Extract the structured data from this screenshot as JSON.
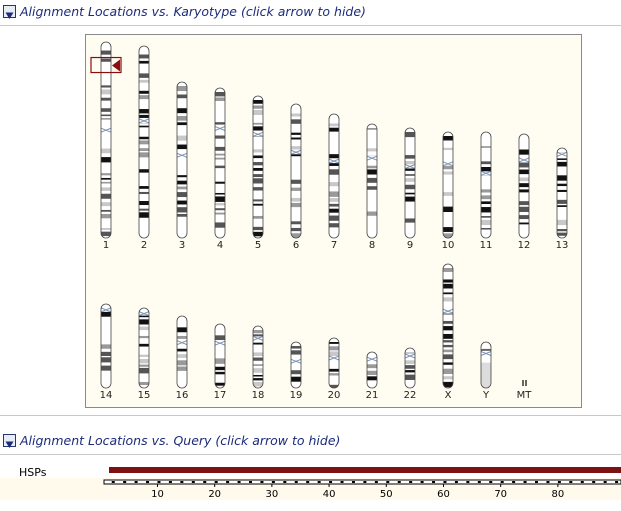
{
  "karyotype_section": {
    "title": "Alignment Locations vs. Karyotype (click arrow to hide)",
    "toggle_icon": "triangle-down-icon",
    "chromosomes": [
      {
        "label": "1",
        "height": 196,
        "centromere": 0.45
      },
      {
        "label": "2",
        "height": 192,
        "centromere": 0.39
      },
      {
        "label": "3",
        "height": 156,
        "centromere": 0.47
      },
      {
        "label": "4",
        "height": 150,
        "centromere": 0.27
      },
      {
        "label": "5",
        "height": 142,
        "centromere": 0.27
      },
      {
        "label": "6",
        "height": 134,
        "centromere": 0.36
      },
      {
        "label": "7",
        "height": 124,
        "centromere": 0.38
      },
      {
        "label": "8",
        "height": 114,
        "centromere": 0.3
      },
      {
        "label": "9",
        "height": 110,
        "centromere": 0.35
      },
      {
        "label": "10",
        "height": 106,
        "centromere": 0.3
      },
      {
        "label": "11",
        "height": 106,
        "centromere": 0.39
      },
      {
        "label": "12",
        "height": 104,
        "centromere": 0.25
      },
      {
        "label": "13",
        "height": 90,
        "centromere": 0.07
      },
      {
        "label": "14",
        "height": 84,
        "centromere": 0.07
      },
      {
        "label": "15",
        "height": 80,
        "centromere": 0.07
      },
      {
        "label": "16",
        "height": 72,
        "centromere": 0.37
      },
      {
        "label": "17",
        "height": 64,
        "centromere": 0.3
      },
      {
        "label": "18",
        "height": 62,
        "centromere": 0.2
      },
      {
        "label": "19",
        "height": 46,
        "centromere": 0.42
      },
      {
        "label": "20",
        "height": 50,
        "centromere": 0.4
      },
      {
        "label": "21",
        "height": 36,
        "centromere": 0.2
      },
      {
        "label": "22",
        "height": 40,
        "centromere": 0.2
      },
      {
        "label": "X",
        "height": 124,
        "centromere": 0.38
      },
      {
        "label": "Y",
        "height": 46,
        "centromere": 0.25
      },
      {
        "label": "MT",
        "height": 5,
        "centromere": 0
      }
    ],
    "hit_marker": {
      "chromosome": "1",
      "position": 0.12,
      "color": "#8b0d0d"
    }
  },
  "query_section": {
    "title": "Alignment Locations vs. Query (click arrow to hide)",
    "toggle_icon": "triangle-down-icon",
    "hsps_label": "HSPs",
    "hsp_color": "#7a1212",
    "ruler": {
      "start": 1,
      "end": 90,
      "labels": [
        "10",
        "20",
        "30",
        "40",
        "50",
        "60",
        "70",
        "80"
      ]
    }
  },
  "colors": {
    "header_text": "#1c2b7a",
    "panel_bg": "#fffdf1",
    "ruler_bg": "#fffaec"
  }
}
